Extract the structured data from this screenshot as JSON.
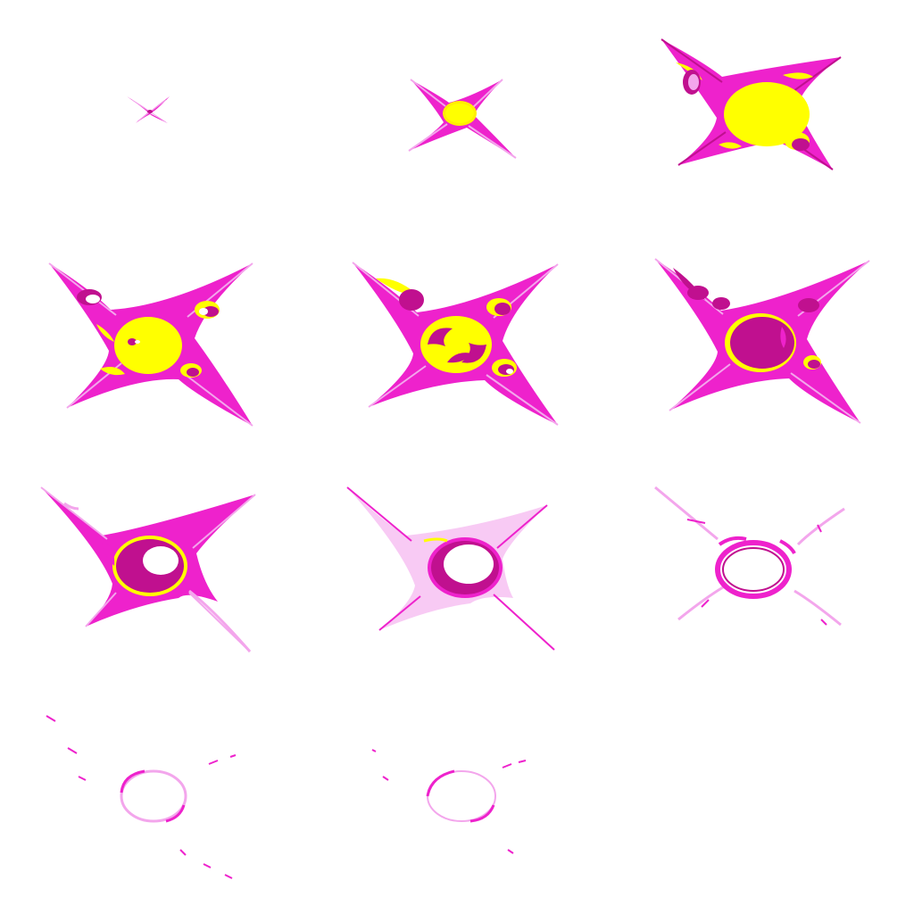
{
  "sprite_sheet": {
    "columns": 3,
    "rows": 4,
    "frame_count": 11,
    "colors": {
      "background": "#ffffff",
      "magenta": "#ee22cc",
      "dark_magenta": "#c0108f",
      "yellow": "#ffff00",
      "pale_pink": "#f3a6ec",
      "light_pink": "#fad2f6"
    },
    "frames": [
      {
        "stage": "spark"
      },
      {
        "stage": "star-small"
      },
      {
        "stage": "star-large"
      },
      {
        "stage": "burst-yellow-core"
      },
      {
        "stage": "burst-swirl"
      },
      {
        "stage": "burst-magenta-core"
      },
      {
        "stage": "ring-hollow-start"
      },
      {
        "stage": "ring-hollow"
      },
      {
        "stage": "ring-fading"
      },
      {
        "stage": "ring-wisps"
      },
      {
        "stage": "ring-vanishing"
      }
    ]
  }
}
